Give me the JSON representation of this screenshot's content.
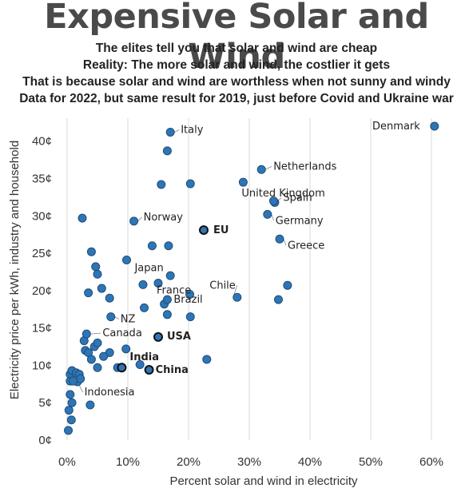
{
  "title": "Expensive Solar and Wind",
  "subtitles": [
    "The elites tell you that solar and wind are cheap",
    "Reality: The more solar and wind, the costlier it gets",
    "That is because solar and wind are worthless when not sunny and windy",
    "Data for 2022, but same result for 2019, just before Covid and Ukraine war"
  ],
  "chart_data": {
    "type": "scatter",
    "xlabel": "Percent solar and wind in electricity",
    "ylabel": "Electricity price per kWh, industry and household",
    "xlim": [
      0,
      60
    ],
    "ylim": [
      0,
      42
    ],
    "x_ticks": [
      "0%",
      "10%",
      "20%",
      "30%",
      "40%",
      "50%",
      "60%"
    ],
    "y_ticks": [
      "0¢",
      "5¢",
      "10¢",
      "15¢",
      "20¢",
      "25¢",
      "30¢",
      "35¢",
      "40¢"
    ],
    "grid": "vertical",
    "colors": {
      "point_fill": "#2e75b6",
      "point_stroke": "#1f4e79",
      "highlight_stroke": "#111111",
      "grid": "#d9d9d9"
    },
    "labeled_points": [
      {
        "name": "Denmark",
        "x": 60.5,
        "y": 42.0,
        "bold": false
      },
      {
        "name": "Italy",
        "x": 17.0,
        "y": 41.2,
        "bold": false
      },
      {
        "name": "Netherlands",
        "x": 32.0,
        "y": 36.2,
        "bold": false
      },
      {
        "name": "United Kingdom",
        "x": 29.0,
        "y": 34.5,
        "bold": false
      },
      {
        "name": "Spain",
        "x": 34.0,
        "y": 32.0,
        "bold": false
      },
      {
        "name": "Germany",
        "x": 33.0,
        "y": 30.2,
        "bold": false
      },
      {
        "name": "Norway",
        "x": 11.0,
        "y": 29.3,
        "bold": false
      },
      {
        "name": "EU",
        "x": 22.5,
        "y": 28.1,
        "bold": true
      },
      {
        "name": "Greece",
        "x": 35.0,
        "y": 26.9,
        "bold": false
      },
      {
        "name": "Japan",
        "x": 9.8,
        "y": 24.1,
        "bold": false
      },
      {
        "name": "Chile",
        "x": 28.0,
        "y": 19.1,
        "bold": false
      },
      {
        "name": "France",
        "x": 15.0,
        "y": 21.0,
        "bold": false
      },
      {
        "name": "Brazil",
        "x": 16.5,
        "y": 18.8,
        "bold": false
      },
      {
        "name": "NZ",
        "x": 7.2,
        "y": 16.5,
        "bold": false
      },
      {
        "name": "USA",
        "x": 15.0,
        "y": 13.8,
        "bold": true
      },
      {
        "name": "Canada",
        "x": 3.2,
        "y": 14.2,
        "bold": false
      },
      {
        "name": "India",
        "x": 9.0,
        "y": 9.7,
        "bold": true
      },
      {
        "name": "China",
        "x": 13.5,
        "y": 9.4,
        "bold": true
      },
      {
        "name": "Indonesia",
        "x": 1.0,
        "y": 7.9,
        "bold": false
      }
    ],
    "other_points": [
      [
        2.5,
        29.7
      ],
      [
        16.5,
        38.7
      ],
      [
        15.5,
        34.2
      ],
      [
        20.3,
        34.3
      ],
      [
        34.2,
        31.8
      ],
      [
        14.0,
        26.0
      ],
      [
        16.7,
        26.0
      ],
      [
        4.0,
        25.2
      ],
      [
        4.7,
        23.2
      ],
      [
        5.0,
        22.2
      ],
      [
        17.0,
        22.0
      ],
      [
        12.5,
        20.8
      ],
      [
        5.7,
        20.3
      ],
      [
        3.5,
        19.7
      ],
      [
        7.0,
        19.0
      ],
      [
        20.2,
        19.5
      ],
      [
        36.3,
        20.7
      ],
      [
        34.8,
        18.8
      ],
      [
        16.0,
        18.2
      ],
      [
        12.7,
        17.7
      ],
      [
        16.5,
        16.8
      ],
      [
        20.3,
        16.5
      ],
      [
        4.5,
        12.5
      ],
      [
        5.0,
        13.0
      ],
      [
        2.8,
        13.3
      ],
      [
        3.0,
        12.0
      ],
      [
        3.5,
        11.7
      ],
      [
        7.0,
        11.7
      ],
      [
        9.7,
        12.2
      ],
      [
        4.0,
        10.8
      ],
      [
        6.0,
        11.2
      ],
      [
        5.0,
        9.7
      ],
      [
        8.3,
        9.7
      ],
      [
        12.0,
        10.1
      ],
      [
        23.0,
        10.8
      ],
      [
        0.5,
        8.8
      ],
      [
        0.8,
        9.3
      ],
      [
        1.5,
        9.0
      ],
      [
        2.0,
        8.8
      ],
      [
        0.5,
        7.9
      ],
      [
        1.7,
        7.8
      ],
      [
        2.2,
        8.2
      ],
      [
        0.5,
        6.1
      ],
      [
        0.8,
        5.0
      ],
      [
        3.8,
        4.7
      ],
      [
        0.3,
        4.0
      ],
      [
        0.7,
        2.7
      ],
      [
        0.2,
        1.3
      ]
    ]
  }
}
